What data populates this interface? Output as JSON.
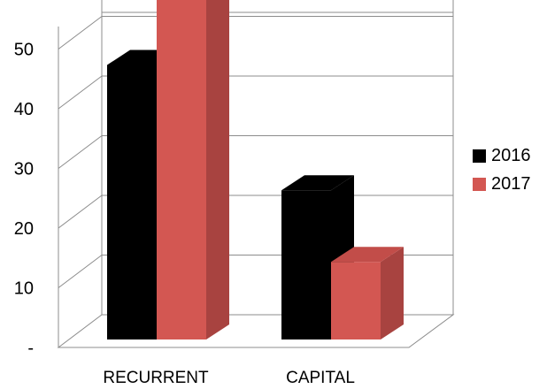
{
  "chart_data": {
    "type": "bar",
    "style": "3d-clustered-column",
    "categories": [
      "RECURRENT",
      "CAPITAL"
    ],
    "series": [
      {
        "name": "2016",
        "values": [
          46,
          25
        ],
        "color": "#000000",
        "side_color": "#000000",
        "top_color": "#000000"
      },
      {
        "name": "2017",
        "values": [
          59,
          13
        ],
        "color": "#d35752",
        "side_color": "#a84340",
        "top_color": "#c24d49"
      }
    ],
    "y_ticks": [
      {
        "value": 0,
        "label": "-"
      },
      {
        "value": 10,
        "label": "10"
      },
      {
        "value": 20,
        "label": "20"
      },
      {
        "value": 30,
        "label": "30"
      },
      {
        "value": 40,
        "label": "40"
      },
      {
        "value": 50,
        "label": "50"
      }
    ],
    "ylim": [
      0,
      56
    ],
    "grid": true,
    "legend_position": "right"
  }
}
